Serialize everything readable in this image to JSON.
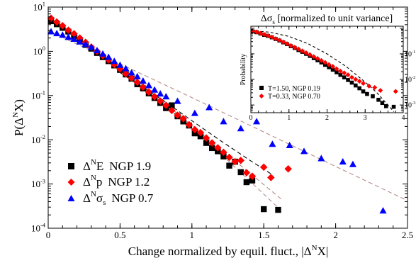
{
  "chart_data": [
    {
      "type": "scatter",
      "xlabel": "Change normalized by equil. fluct., |Δ^N X|",
      "xlabel_parts": {
        "main": "Change normalized by equil. fluct., |Δ",
        "sup": "N",
        "tail": "X|"
      },
      "ylabel": "P(Δ^N X)",
      "ylabel_parts": {
        "main": "P(Δ",
        "sup": "N",
        "tail": "X)"
      },
      "yscale": "log",
      "xlim": [
        0,
        2.5
      ],
      "ylim": [
        0.0001,
        10
      ],
      "x_ticks": [
        "0",
        "0.5",
        "1",
        "1.5",
        "2",
        "2.5"
      ],
      "y_ticks": [
        {
          "base": "10",
          "exp": "-4"
        },
        {
          "base": "10",
          "exp": "-3"
        },
        {
          "base": "10",
          "exp": "-2"
        },
        {
          "base": "10",
          "exp": "-1"
        },
        {
          "base": "10",
          "exp": "0"
        },
        {
          "base": "10",
          "exp": "1"
        }
      ],
      "legend_position": "bottom-left",
      "series": [
        {
          "name": "Δ^N E  NGP 1.9",
          "label_parts": {
            "pre": "Δ",
            "sup": "N",
            "post": "E",
            "ngp": "NGP 1.9"
          },
          "marker": "square",
          "color": "#000000",
          "points": [
            [
              0.02,
              4.8
            ],
            [
              0.06,
              4.1
            ],
            [
              0.1,
              3.4
            ],
            [
              0.14,
              2.8
            ],
            [
              0.18,
              2.2
            ],
            [
              0.22,
              1.8
            ],
            [
              0.26,
              1.4
            ],
            [
              0.3,
              1.15
            ],
            [
              0.34,
              0.92
            ],
            [
              0.38,
              0.74
            ],
            [
              0.42,
              0.6
            ],
            [
              0.46,
              0.48
            ],
            [
              0.5,
              0.38
            ],
            [
              0.54,
              0.3
            ],
            [
              0.58,
              0.24
            ],
            [
              0.62,
              0.18
            ],
            [
              0.66,
              0.145
            ],
            [
              0.7,
              0.112
            ],
            [
              0.74,
              0.088
            ],
            [
              0.78,
              0.068
            ],
            [
              0.82,
              0.052
            ],
            [
              0.86,
              0.06
            ],
            [
              0.9,
              0.034
            ],
            [
              0.94,
              0.026
            ],
            [
              0.98,
              0.021
            ],
            [
              1.02,
              0.014
            ],
            [
              1.06,
              0.012
            ],
            [
              1.1,
              0.0085
            ],
            [
              1.14,
              0.0065
            ],
            [
              1.18,
              0.0055
            ],
            [
              1.22,
              0.0042
            ],
            [
              1.26,
              0.0026
            ],
            [
              1.3,
              0.0032
            ],
            [
              1.34,
              0.00185
            ],
            [
              1.38,
              0.0011
            ],
            [
              1.42,
              0.0012
            ],
            [
              1.5,
              0.00027
            ],
            [
              1.6,
              0.00026
            ]
          ]
        },
        {
          "name": "Δ^N p  NGP 1.2",
          "label_parts": {
            "pre": "Δ",
            "sup": "N",
            "post": "p",
            "ngp": "NGP 1.2"
          },
          "marker": "diamond",
          "color": "#ff0000",
          "points": [
            [
              0.02,
              5.6
            ],
            [
              0.06,
              4.6
            ],
            [
              0.1,
              3.8
            ],
            [
              0.14,
              3.0
            ],
            [
              0.18,
              2.5
            ],
            [
              0.22,
              2.0
            ],
            [
              0.26,
              1.6
            ],
            [
              0.3,
              1.25
            ],
            [
              0.34,
              1.0
            ],
            [
              0.38,
              0.8
            ],
            [
              0.42,
              0.64
            ],
            [
              0.46,
              0.5
            ],
            [
              0.5,
              0.4
            ],
            [
              0.54,
              0.31
            ],
            [
              0.58,
              0.25
            ],
            [
              0.62,
              0.2
            ],
            [
              0.66,
              0.155
            ],
            [
              0.7,
              0.12
            ],
            [
              0.74,
              0.095
            ],
            [
              0.78,
              0.075
            ],
            [
              0.82,
              0.06
            ],
            [
              0.86,
              0.046
            ],
            [
              0.9,
              0.036
            ],
            [
              0.94,
              0.03
            ],
            [
              0.98,
              0.022
            ],
            [
              1.02,
              0.017
            ],
            [
              1.06,
              0.0145
            ],
            [
              1.1,
              0.011
            ],
            [
              1.14,
              0.0085
            ],
            [
              1.18,
              0.0066
            ],
            [
              1.22,
              0.0052
            ],
            [
              1.26,
              0.004
            ],
            [
              1.3,
              0.0032
            ],
            [
              1.34,
              0.0034
            ],
            [
              1.38,
              0.0018
            ],
            [
              1.42,
              0.0015
            ],
            [
              1.5,
              0.0024
            ],
            [
              1.55,
              0.0014
            ],
            [
              1.67,
              0.0022
            ]
          ]
        },
        {
          "name": "Δ^N σ_s  NGP 0.7",
          "label_parts": {
            "pre": "Δ",
            "sup": "N",
            "post": "σ",
            "sub": "s",
            "ngp": "NGP 0.7"
          },
          "marker": "triangle",
          "color": "#0000ff",
          "points": [
            [
              0.02,
              2.8
            ],
            [
              0.06,
              2.55
            ],
            [
              0.1,
              2.35
            ],
            [
              0.14,
              2.1
            ],
            [
              0.18,
              1.9
            ],
            [
              0.22,
              1.65
            ],
            [
              0.26,
              1.45
            ],
            [
              0.3,
              1.25
            ],
            [
              0.34,
              1.05
            ],
            [
              0.38,
              0.88
            ],
            [
              0.42,
              0.74
            ],
            [
              0.46,
              0.6
            ],
            [
              0.5,
              0.49
            ],
            [
              0.54,
              0.41
            ],
            [
              0.58,
              0.33
            ],
            [
              0.62,
              0.27
            ],
            [
              0.66,
              0.215
            ],
            [
              0.7,
              0.17
            ],
            [
              0.74,
              0.135
            ],
            [
              0.78,
              0.11
            ],
            [
              0.82,
              0.095
            ],
            [
              0.9,
              0.075
            ],
            [
              1.02,
              0.04
            ],
            [
              1.12,
              0.054
            ],
            [
              1.22,
              0.026
            ],
            [
              1.34,
              0.018
            ],
            [
              1.45,
              0.026
            ],
            [
              1.56,
              0.008
            ],
            [
              1.68,
              0.0075
            ],
            [
              1.78,
              0.0055
            ],
            [
              1.9,
              0.0038
            ],
            [
              2.05,
              0.0032
            ],
            [
              2.12,
              0.0028
            ],
            [
              2.33,
              0.00025
            ]
          ]
        }
      ],
      "fit_lines": [
        {
          "color": "#b58a8a",
          "style": "dashed",
          "points": [
            [
              0,
              4.6
            ],
            [
              0.2,
              2.3
            ],
            [
              0.4,
              0.75
            ],
            [
              0.6,
              0.22
            ],
            [
              0.8,
              0.065
            ],
            [
              1.0,
              0.018
            ],
            [
              1.2,
              0.0048
            ],
            [
              1.4,
              0.0012
            ],
            [
              1.6,
              0.00029
            ]
          ]
        },
        {
          "color": "#b58a8a",
          "style": "dashed",
          "points": [
            [
              0,
              5.4
            ],
            [
              0.2,
              2.45
            ],
            [
              0.4,
              0.82
            ],
            [
              0.6,
              0.24
            ],
            [
              0.8,
              0.072
            ],
            [
              1.0,
              0.021
            ],
            [
              1.2,
              0.0062
            ],
            [
              1.4,
              0.0018
            ],
            [
              1.62,
              0.00046
            ]
          ]
        },
        {
          "color": "#b58a8a",
          "style": "dashed",
          "points": [
            [
              0,
              2.9
            ],
            [
              0.5,
              0.52
            ],
            [
              1.0,
              0.09
            ],
            [
              1.5,
              0.015
            ],
            [
              2.0,
              0.0025
            ],
            [
              2.5,
              0.00042
            ]
          ]
        },
        {
          "color": "#000000",
          "style": "dashed",
          "points": [
            [
              0.5,
              0.33
            ],
            [
              0.8,
              0.078
            ],
            [
              1.0,
              0.027
            ],
            [
              1.2,
              0.0095
            ],
            [
              1.4,
              0.0035
            ],
            [
              1.55,
              0.0017
            ]
          ]
        }
      ]
    },
    {
      "type": "scatter",
      "title": "Δσ_s [normalized to unit variance]",
      "title_parts": {
        "pre": "Δσ",
        "sub": "s",
        "post": " [normalized to unit variance]"
      },
      "ylabel": "Probability",
      "yscale": "log",
      "xlim": [
        0,
        4
      ],
      "ylim": [
        0.0005,
        1.2
      ],
      "x_ticks": [
        "0",
        "1",
        "2",
        "3",
        "4"
      ],
      "y_ticks": [
        {
          "base": "10",
          "exp": "-3"
        },
        {
          "base": "10",
          "exp": "-2"
        },
        {
          "base": "10",
          "exp": "-1"
        }
      ],
      "legend_position": "bottom-left",
      "series": [
        {
          "name": "T=1.50, NGP 0.19",
          "marker": "square",
          "color": "#000000",
          "points": [
            [
              0.05,
              0.75
            ],
            [
              0.15,
              0.7
            ],
            [
              0.25,
              0.62
            ],
            [
              0.35,
              0.55
            ],
            [
              0.45,
              0.5
            ],
            [
              0.55,
              0.44
            ],
            [
              0.65,
              0.38
            ],
            [
              0.75,
              0.33
            ],
            [
              0.85,
              0.28
            ],
            [
              0.95,
              0.24
            ],
            [
              1.05,
              0.2
            ],
            [
              1.15,
              0.17
            ],
            [
              1.25,
              0.14
            ],
            [
              1.35,
              0.12
            ],
            [
              1.45,
              0.1
            ],
            [
              1.55,
              0.083
            ],
            [
              1.65,
              0.068
            ],
            [
              1.75,
              0.056
            ],
            [
              1.85,
              0.046
            ],
            [
              1.95,
              0.037
            ],
            [
              2.05,
              0.03
            ],
            [
              2.15,
              0.024
            ],
            [
              2.25,
              0.019
            ],
            [
              2.35,
              0.015
            ],
            [
              2.45,
              0.012
            ],
            [
              2.55,
              0.0095
            ],
            [
              2.65,
              0.0075
            ],
            [
              2.75,
              0.0058
            ],
            [
              2.85,
              0.0045
            ],
            [
              2.95,
              0.0034
            ],
            [
              3.05,
              0.0027
            ],
            [
              3.2,
              0.0022
            ],
            [
              3.35,
              0.0016
            ],
            [
              3.45,
              0.0012
            ],
            [
              3.55,
              0.0009
            ],
            [
              3.75,
              0.00085
            ]
          ]
        },
        {
          "name": "T=0.33, NGP 0.70",
          "marker": "diamond",
          "color": "#ff0000",
          "points": [
            [
              0.05,
              0.78
            ],
            [
              0.15,
              0.72
            ],
            [
              0.25,
              0.64
            ],
            [
              0.35,
              0.57
            ],
            [
              0.45,
              0.51
            ],
            [
              0.55,
              0.45
            ],
            [
              0.65,
              0.39
            ],
            [
              0.75,
              0.34
            ],
            [
              0.85,
              0.29
            ],
            [
              0.95,
              0.25
            ],
            [
              1.05,
              0.21
            ],
            [
              1.15,
              0.18
            ],
            [
              1.25,
              0.155
            ],
            [
              1.35,
              0.13
            ],
            [
              1.45,
              0.11
            ],
            [
              1.55,
              0.093
            ],
            [
              1.65,
              0.078
            ],
            [
              1.75,
              0.066
            ],
            [
              1.85,
              0.055
            ],
            [
              1.95,
              0.046
            ],
            [
              2.05,
              0.038
            ],
            [
              2.15,
              0.032
            ],
            [
              2.25,
              0.026
            ],
            [
              2.35,
              0.021
            ],
            [
              2.45,
              0.018
            ],
            [
              2.55,
              0.015
            ],
            [
              2.65,
              0.012
            ],
            [
              2.75,
              0.01
            ],
            [
              2.85,
              0.0085
            ],
            [
              2.95,
              0.007
            ],
            [
              3.1,
              0.0055
            ],
            [
              3.25,
              0.0048
            ],
            [
              3.4,
              0.0037
            ],
            [
              3.8,
              0.0034
            ]
          ]
        }
      ],
      "fit_lines": [
        {
          "color": "#000000",
          "style": "dashed",
          "points": [
            [
              0,
              0.8
            ],
            [
              0.5,
              0.7
            ],
            [
              1.0,
              0.48
            ],
            [
              1.5,
              0.25
            ],
            [
              2.0,
              0.1
            ],
            [
              2.5,
              0.032
            ],
            [
              3.0,
              0.0078
            ],
            [
              3.3,
              0.0031
            ],
            [
              3.55,
              0.0012
            ],
            [
              3.75,
              0.00055
            ]
          ]
        }
      ]
    }
  ]
}
